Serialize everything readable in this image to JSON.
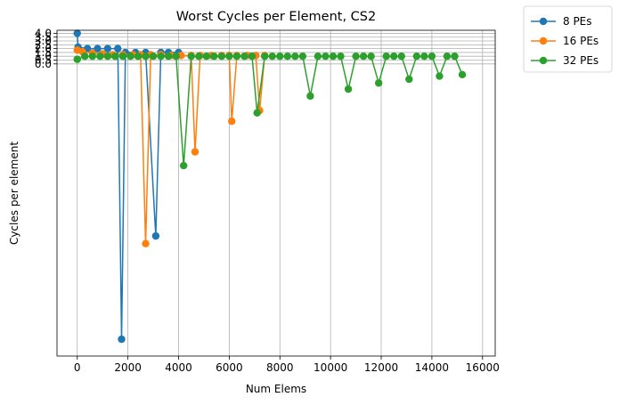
{
  "chart_data": {
    "type": "line",
    "title": "Worst Cycles per Element, CS2",
    "xlabel": "Num Elems",
    "ylabel": "Cycles per element",
    "xlim": [
      -800,
      16500
    ],
    "ylim": [
      -38.2,
      4.4
    ],
    "x_ticks": [
      0,
      2000,
      4000,
      6000,
      8000,
      10000,
      12000,
      14000,
      16000
    ],
    "x_tick_labels": [
      "0",
      "2000",
      "4000",
      "6000",
      "8000",
      "10000",
      "12000",
      "14000",
      "16000"
    ],
    "y_ticks": [
      4.0,
      3.5,
      3.0,
      2.5,
      2.0,
      1.5,
      1.0,
      0.5,
      0.0
    ],
    "y_tick_labels": [
      "4.0",
      "3.5",
      "3.0",
      "2.5",
      "2.0",
      "1.5",
      "1.0",
      "0.5",
      "0.0"
    ],
    "grid": true,
    "legend_position": "outside-top-right",
    "series": [
      {
        "name": "8 PEs",
        "color": "#1f77b4",
        "points": [
          [
            0,
            4.0
          ],
          [
            30,
            2.2
          ],
          [
            400,
            2.0
          ],
          [
            800,
            2.0
          ],
          [
            1200,
            2.0
          ],
          [
            1600,
            2.0
          ],
          [
            1750,
            -36.0
          ],
          [
            1900,
            1.5
          ],
          [
            2300,
            1.5
          ],
          [
            2700,
            1.5
          ],
          [
            3100,
            -22.5
          ],
          [
            3300,
            1.5
          ],
          [
            3600,
            1.5
          ],
          [
            4000,
            1.5
          ]
        ]
      },
      {
        "name": "16 PEs",
        "color": "#ff7f0e",
        "points": [
          [
            0,
            1.8
          ],
          [
            200,
            1.6
          ],
          [
            600,
            1.4
          ],
          [
            1000,
            1.3
          ],
          [
            1400,
            1.2
          ],
          [
            1800,
            1.2
          ],
          [
            2200,
            1.2
          ],
          [
            2500,
            1.2
          ],
          [
            2700,
            -23.5
          ],
          [
            2900,
            1.2
          ],
          [
            3300,
            1.2
          ],
          [
            3700,
            1.1
          ],
          [
            4100,
            1.1
          ],
          [
            4500,
            1.1
          ],
          [
            4650,
            -11.5
          ],
          [
            4850,
            1.1
          ],
          [
            5300,
            1.1
          ],
          [
            5700,
            1.1
          ],
          [
            6000,
            1.1
          ],
          [
            6100,
            -7.5
          ],
          [
            6300,
            1.1
          ],
          [
            6700,
            1.1
          ],
          [
            7050,
            1.1
          ],
          [
            7200,
            -6.1
          ],
          [
            7400,
            1.1
          ]
        ]
      },
      {
        "name": "32 PEs",
        "color": "#2ca02c",
        "points": [
          [
            0,
            0.6
          ],
          [
            300,
            1.0
          ],
          [
            600,
            1.0
          ],
          [
            900,
            1.0
          ],
          [
            1200,
            1.0
          ],
          [
            1500,
            1.0
          ],
          [
            1800,
            1.0
          ],
          [
            2100,
            1.0
          ],
          [
            2400,
            1.0
          ],
          [
            2700,
            1.0
          ],
          [
            3000,
            1.0
          ],
          [
            3300,
            1.0
          ],
          [
            3600,
            1.0
          ],
          [
            3900,
            1.0
          ],
          [
            4200,
            -13.3
          ],
          [
            4500,
            1.0
          ],
          [
            4800,
            1.0
          ],
          [
            5100,
            1.0
          ],
          [
            5400,
            1.0
          ],
          [
            5700,
            1.0
          ],
          [
            6000,
            1.0
          ],
          [
            6300,
            1.0
          ],
          [
            6600,
            1.0
          ],
          [
            6900,
            1.0
          ],
          [
            7100,
            -6.4
          ],
          [
            7400,
            1.0
          ],
          [
            7700,
            1.0
          ],
          [
            8000,
            1.0
          ],
          [
            8300,
            1.0
          ],
          [
            8600,
            1.0
          ],
          [
            8900,
            1.0
          ],
          [
            9200,
            -4.2
          ],
          [
            9500,
            1.0
          ],
          [
            9800,
            1.0
          ],
          [
            10100,
            1.0
          ],
          [
            10400,
            1.0
          ],
          [
            10700,
            -3.3
          ],
          [
            11000,
            1.0
          ],
          [
            11300,
            1.0
          ],
          [
            11600,
            1.0
          ],
          [
            11900,
            -2.5
          ],
          [
            12200,
            1.0
          ],
          [
            12500,
            1.0
          ],
          [
            12800,
            1.0
          ],
          [
            13100,
            -2.0
          ],
          [
            13400,
            1.0
          ],
          [
            13700,
            1.0
          ],
          [
            14000,
            1.0
          ],
          [
            14300,
            -1.6
          ],
          [
            14600,
            1.0
          ],
          [
            14900,
            1.0
          ],
          [
            15200,
            -1.4
          ]
        ]
      }
    ]
  }
}
